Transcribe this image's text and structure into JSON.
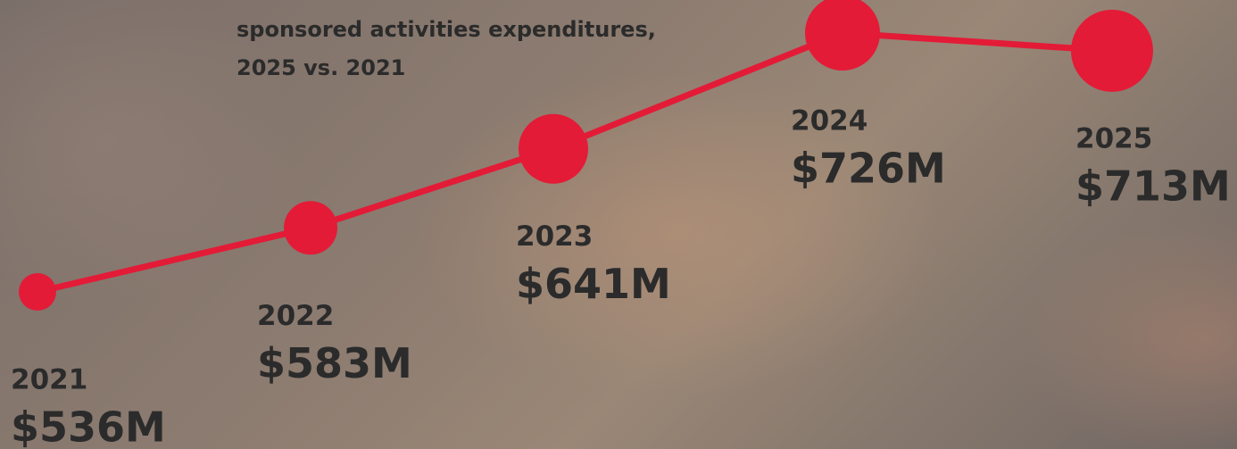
{
  "chart_data": {
    "type": "line",
    "title": "sponsored activities expenditures, 2025 vs. 2021",
    "categories": [
      "2021",
      "2022",
      "2023",
      "2024",
      "2025"
    ],
    "values": [
      536,
      583,
      641,
      726,
      713
    ],
    "value_labels": [
      "$536M",
      "$583M",
      "$641M",
      "$726M",
      "$713M"
    ],
    "color": "#e31b37"
  }
}
